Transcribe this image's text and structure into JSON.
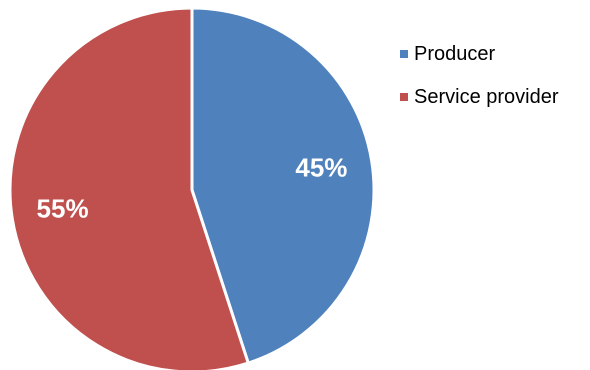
{
  "chart_data": {
    "type": "pie",
    "categories": [
      "Producer",
      "Service provider"
    ],
    "values": [
      45,
      55
    ],
    "data_labels": [
      "45%",
      "55%"
    ],
    "colors": [
      "#4F81BD",
      "#C0504D"
    ],
    "start_angle": "12 o'clock",
    "direction": "clockwise",
    "legend_position": "right",
    "title": ""
  }
}
